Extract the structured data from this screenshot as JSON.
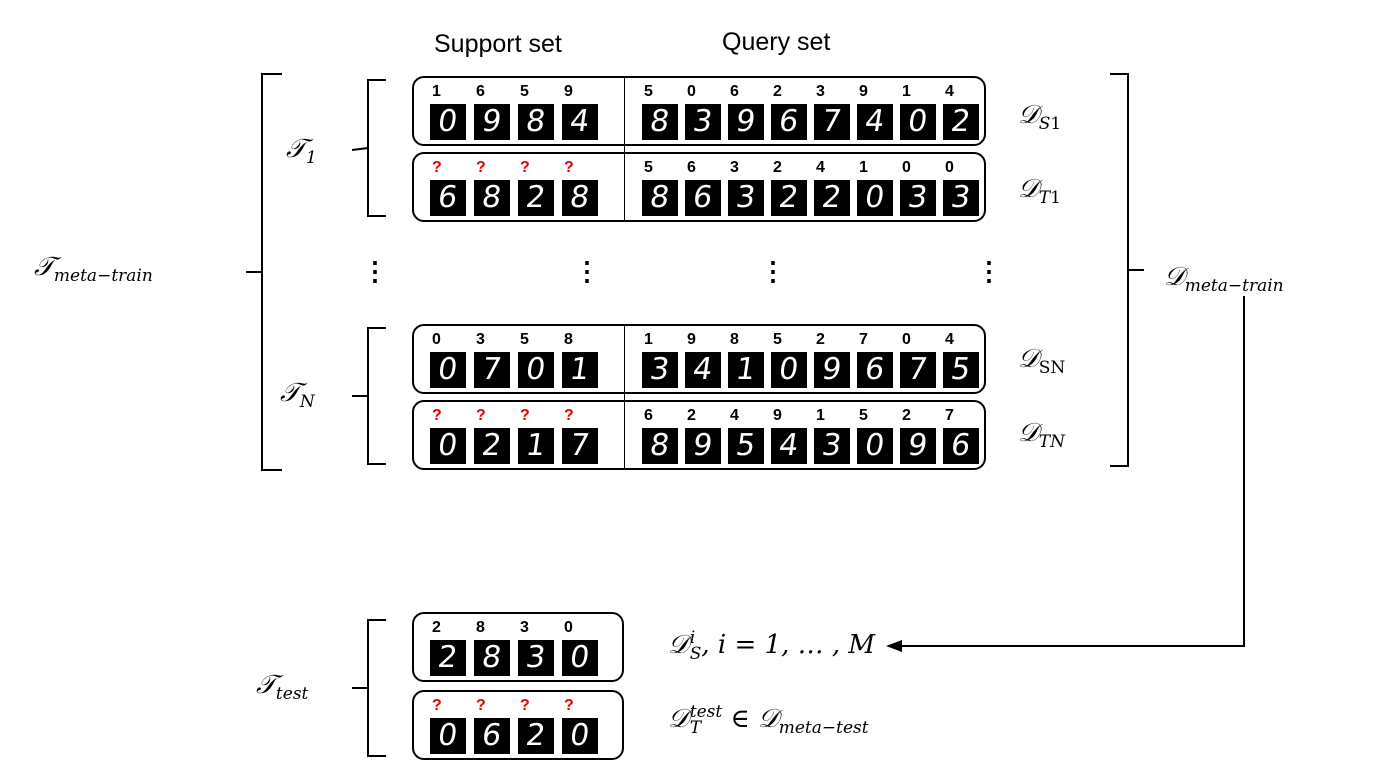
{
  "headers": {
    "support": "Support set",
    "query": "Query set"
  },
  "tasks": {
    "t1": "𝒯",
    "t1_sub": "1",
    "tn": "𝒯",
    "tn_sub": "N",
    "meta_train": "𝒯",
    "meta_train_sub": "meta−train",
    "test": "𝒯",
    "test_sub": "test"
  },
  "datasets": {
    "ds1": "𝒟",
    "ds1_sub": "S",
    "ds1_subsub": "1",
    "dt1": "𝒟",
    "dt1_sub": "T",
    "dt1_subsub": "1",
    "dsn": "𝒟",
    "dsn_sub": "S",
    "dsn_subsub": "N",
    "dtn": "𝒟",
    "dtn_sub": "T",
    "dtn_subsub": "N",
    "meta_train": "𝒟",
    "meta_train_sub": "meta−train",
    "test_support": "𝒟",
    "test_support_sup": "i",
    "test_support_sub": "S",
    "test_support_tail": ", i = 1, … , M",
    "test_query": "𝒟",
    "test_query_sup": "test",
    "test_query_sub": "T",
    "test_query_tail": " ∈ 𝒟",
    "test_query_tail_sub": "meta−test"
  },
  "ellipsis": "⋮",
  "rows": {
    "s1": {
      "support_labels": [
        "1",
        "6",
        "5",
        "9"
      ],
      "support_digits": [
        "0",
        "9",
        "8",
        "4"
      ],
      "query_labels": [
        "5",
        "0",
        "6",
        "2",
        "3",
        "9",
        "1",
        "4"
      ],
      "query_digits": [
        "8",
        "3",
        "9",
        "6",
        "7",
        "4",
        "0",
        "2"
      ]
    },
    "t1": {
      "support_labels": [
        "?",
        "?",
        "?",
        "?"
      ],
      "support_digits": [
        "6",
        "8",
        "2",
        "8"
      ],
      "query_labels": [
        "5",
        "6",
        "3",
        "2",
        "4",
        "1",
        "0",
        "0"
      ],
      "query_digits": [
        "8",
        "6",
        "3",
        "2",
        "2",
        "0",
        "3",
        "3"
      ]
    },
    "sn": {
      "support_labels": [
        "0",
        "3",
        "5",
        "8"
      ],
      "support_digits": [
        "0",
        "7",
        "0",
        "1"
      ],
      "query_labels": [
        "1",
        "9",
        "8",
        "5",
        "2",
        "7",
        "0",
        "4"
      ],
      "query_digits": [
        "3",
        "4",
        "1",
        "0",
        "9",
        "6",
        "7",
        "5"
      ]
    },
    "tn": {
      "support_labels": [
        "?",
        "?",
        "?",
        "?"
      ],
      "support_digits": [
        "0",
        "2",
        "1",
        "7"
      ],
      "query_labels": [
        "6",
        "2",
        "4",
        "9",
        "1",
        "5",
        "2",
        "7"
      ],
      "query_digits": [
        "8",
        "9",
        "5",
        "4",
        "3",
        "0",
        "9",
        "6"
      ]
    },
    "test_s": {
      "support_labels": [
        "2",
        "8",
        "3",
        "0"
      ],
      "support_digits": [
        "2",
        "8",
        "3",
        "0"
      ]
    },
    "test_t": {
      "support_labels": [
        "?",
        "?",
        "?",
        "?"
      ],
      "support_digits": [
        "0",
        "6",
        "2",
        "0"
      ]
    }
  },
  "colors": {
    "question_mark": "#e00000",
    "digit_bg": "#000000",
    "digit_fg": "#ffffff"
  }
}
